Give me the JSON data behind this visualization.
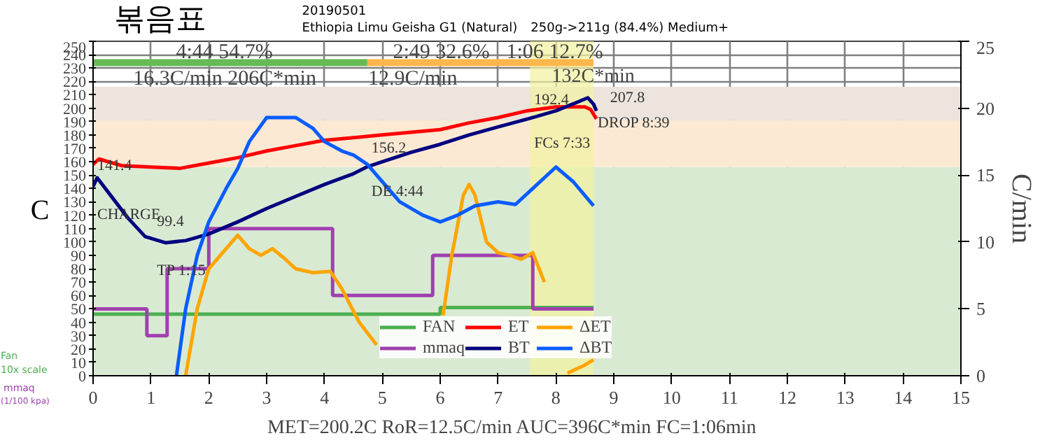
{
  "chart_data": {
    "type": "line",
    "title": "볶음표",
    "subtitle": "20190501",
    "xlabel": null,
    "ylabel": "C",
    "y2label": "C/min",
    "xlim": [
      0,
      15
    ],
    "xticks": [
      0,
      1,
      2,
      3,
      4,
      5,
      6,
      7,
      8,
      9,
      10,
      11,
      12,
      13,
      14,
      15
    ],
    "ylim": [
      0,
      250
    ],
    "yticks": [
      0,
      10,
      20,
      30,
      40,
      50,
      60,
      70,
      80,
      90,
      100,
      110,
      120,
      130,
      140,
      150,
      160,
      170,
      180,
      190,
      200,
      210,
      220,
      230,
      240,
      250
    ],
    "y2lim": [
      0,
      25
    ],
    "y2ticks": [
      0,
      5,
      10,
      15,
      20,
      25
    ],
    "grid": true,
    "legend": "bottom",
    "bands": [
      {
        "axis": "y",
        "from": 0,
        "to": 156,
        "color": "#d9ead3"
      },
      {
        "axis": "y",
        "from": 156,
        "to": 191,
        "color": "#fbe9d3"
      },
      {
        "axis": "y",
        "from": 191,
        "to": 216,
        "color": "#ece4dd"
      },
      {
        "axis": "x",
        "from": 7.55,
        "to": 8.65,
        "color": "#f2f2a0"
      }
    ],
    "series": [
      {
        "name": "FAN",
        "type": "step",
        "color": "#4caf50",
        "x": [
          0,
          6,
          8.65
        ],
        "values": [
          46,
          51,
          51
        ]
      },
      {
        "name": "mmaq",
        "type": "step",
        "color": "#a040b0",
        "x": [
          0,
          0.93,
          1.28,
          2.0,
          4.14,
          5.87,
          7.6,
          8.65
        ],
        "values": [
          50,
          30,
          80,
          110,
          60,
          90,
          50,
          50
        ]
      },
      {
        "name": "ET",
        "color": "#ff0000",
        "x": [
          0,
          0.1,
          0.5,
          1,
          1.5,
          2,
          2.5,
          3,
          3.5,
          4,
          4.5,
          5,
          5.5,
          6,
          6.5,
          7,
          7.5,
          8,
          8.5,
          8.6,
          8.7
        ],
        "values": [
          158,
          162,
          157,
          156,
          155,
          159,
          163,
          168,
          172,
          176,
          178,
          180,
          182,
          184,
          189,
          193,
          198,
          201,
          201,
          199,
          192
        ]
      },
      {
        "name": "BT",
        "color": "#00007f",
        "x": [
          0,
          0.07,
          0.3,
          0.6,
          0.9,
          1.25,
          1.6,
          2,
          2.5,
          3,
          3.5,
          4,
          4.5,
          4.74,
          5,
          5.5,
          6,
          6.5,
          7,
          7.55,
          8,
          8.4,
          8.55,
          8.65,
          8.7
        ],
        "values": [
          141.4,
          148,
          135,
          118,
          104,
          99.4,
          101,
          106,
          115,
          125,
          134,
          143,
          151,
          156.2,
          160,
          167,
          173,
          180,
          186,
          192.4,
          198,
          205,
          207.8,
          203,
          198
        ]
      },
      {
        "name": "ΔET",
        "axis": "y2",
        "color": "#ffa500",
        "x": [
          1.6,
          1.8,
          2,
          2.3,
          2.5,
          2.7,
          2.9,
          3.1,
          3.3,
          3.5,
          3.8,
          4.1,
          4.3,
          4.6,
          4.9,
          5.0,
          6.05,
          6.2,
          6.4,
          6.5,
          6.6,
          6.8,
          7.0,
          7.2,
          7.4,
          7.6,
          7.8,
          8.0,
          8.1,
          8.2,
          8.5,
          8.65
        ],
        "values": [
          0,
          5,
          8,
          9.5,
          10.5,
          9.5,
          9,
          9.5,
          8.8,
          8,
          7.7,
          7.8,
          6.5,
          4,
          2.3,
          null,
          4.5,
          9,
          13.5,
          14.3,
          13.5,
          10,
          9.2,
          9,
          8.7,
          9.2,
          7,
          null,
          null,
          0.2,
          0.8,
          1.2
        ]
      },
      {
        "name": "ΔBT",
        "axis": "y2",
        "color": "#0a5cff",
        "x": [
          1.44,
          1.6,
          1.8,
          2,
          2.3,
          2.5,
          2.7,
          3,
          3.3,
          3.5,
          3.8,
          4,
          4.3,
          4.5,
          4.74,
          5,
          5.3,
          5.7,
          6,
          6.3,
          6.6,
          7,
          7.3,
          7.6,
          8,
          8.3,
          8.65
        ],
        "values": [
          0,
          5,
          9,
          11.5,
          14,
          15.5,
          17.5,
          19.3,
          19.3,
          19.3,
          18.5,
          17.5,
          16.8,
          16.5,
          15.8,
          14.5,
          13,
          12,
          11.5,
          12,
          12.7,
          13,
          12.8,
          14,
          15.6,
          14.5,
          12.7
        ]
      },
      {
        "color": "#66bb55",
        "x": [
          0,
          4.74
        ],
        "values": [
          234,
          234
        ]
      },
      {
        "color": "#ffb74d",
        "x": [
          4.74,
          8.65
        ],
        "values": [
          234,
          234
        ]
      }
    ],
    "annotations": [
      "Ethiopia Limu Geisha G1 (Natural)",
      "250g->211g (84.4%) Medium+",
      "MET=200.2C   RoR=12.5C/min   AUC=396C*min   FC=1:06min",
      "Fan",
      "10x scale",
      "mmaq",
      "(1/100 kpa)",
      "4:44  54.7%",
      "16.3C/min  206C*min",
      "2:49  32.6%",
      "12.9C/min",
      "1:06  12.7%",
      "132C*min",
      {
        "text": "141.4",
        "x": 0,
        "y": 141.4
      },
      {
        "text": "CHARGE",
        "x": 0,
        "y": 141.4
      },
      {
        "text": "99.4",
        "x": 1.25,
        "y": 99.4
      },
      {
        "text": "TP 1:15",
        "x": 1.25,
        "y": 99.4
      },
      {
        "text": "156.2",
        "x": 4.74,
        "y": 156.2
      },
      {
        "text": "DE 4:44",
        "x": 4.74,
        "y": 156.2
      },
      {
        "text": "192.4",
        "x": 7.55,
        "y": 192.4
      },
      {
        "text": "FCs 7:33",
        "x": 7.55,
        "y": 192.4
      },
      {
        "text": "207.8",
        "x": 8.55,
        "y": 207.8
      },
      {
        "text": "DROP 8:39",
        "x": 8.65,
        "y": 207.8
      }
    ]
  }
}
